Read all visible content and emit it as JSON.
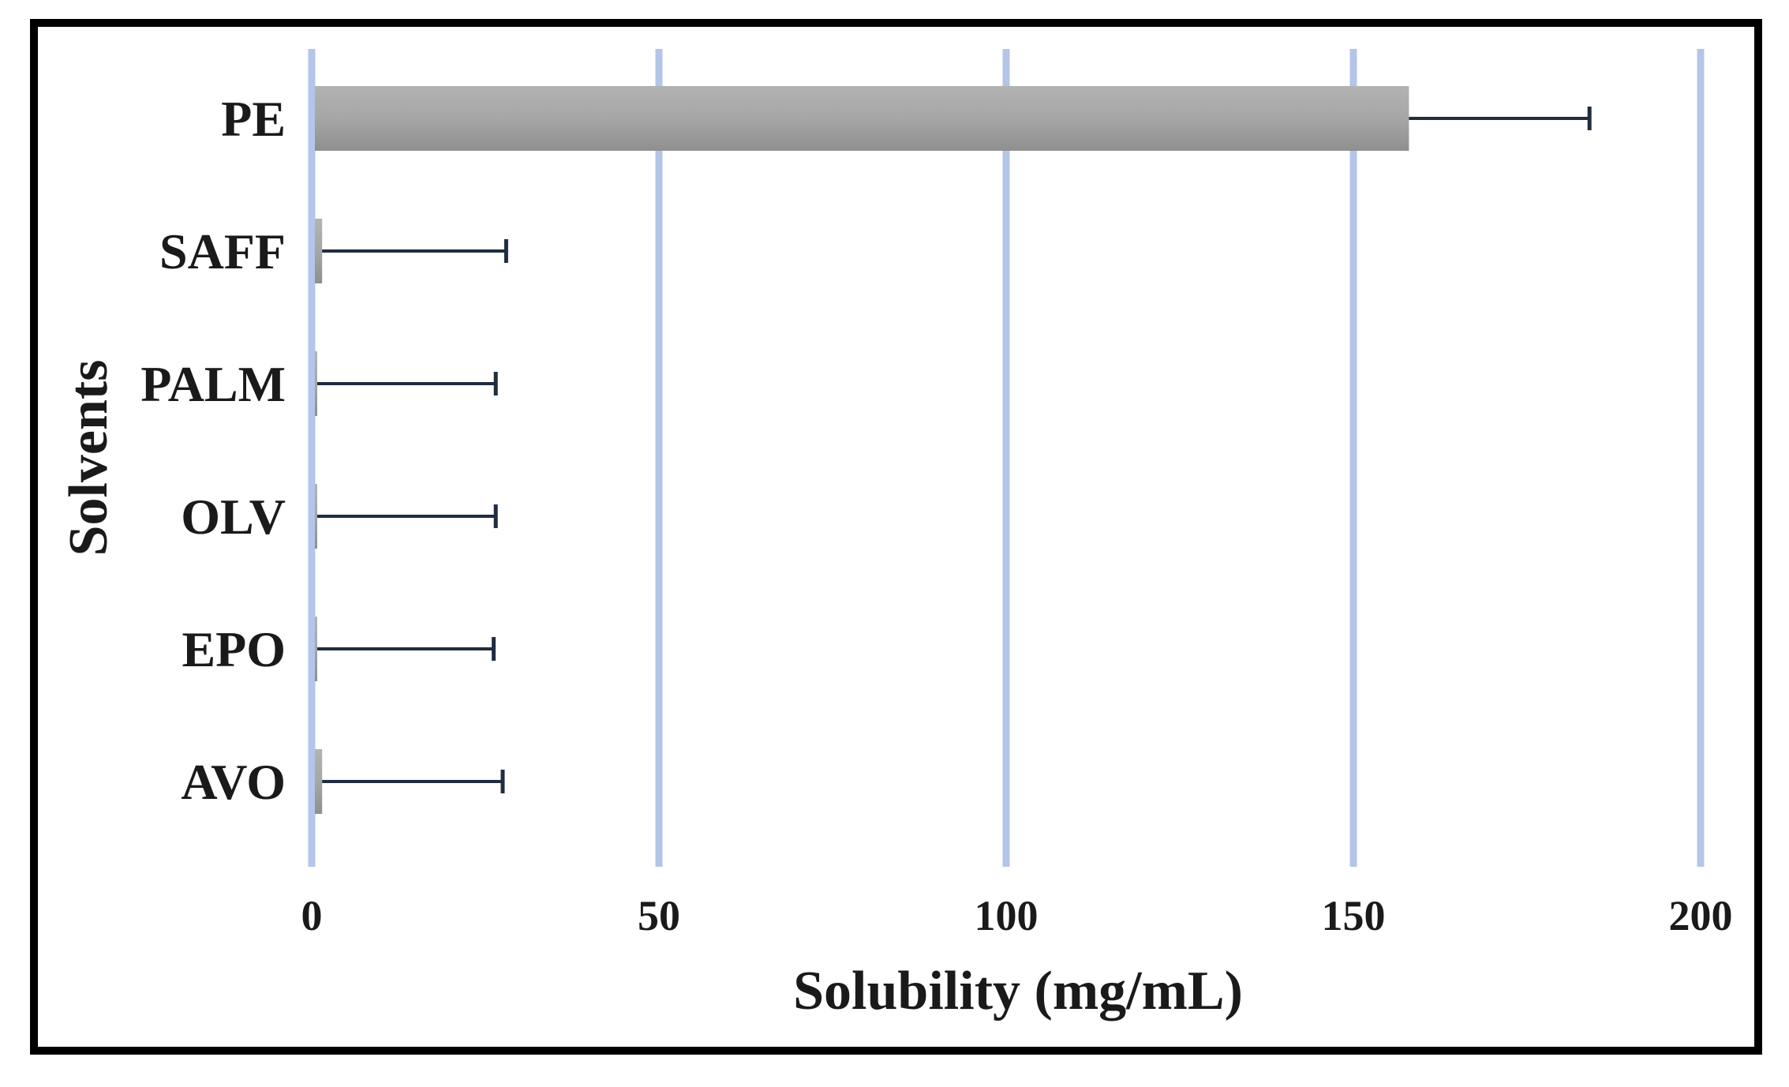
{
  "chart_data": {
    "type": "bar",
    "orientation": "horizontal",
    "categories": [
      "PE",
      "SAFF",
      "PALM",
      "OLV",
      "EPO",
      "AVO"
    ],
    "series": [
      {
        "values": [
          158,
          1.5,
          0.5,
          0.5,
          0.2,
          1.5
        ],
        "error": [
          26,
          26.5,
          26,
          26,
          26,
          26
        ]
      }
    ],
    "xlabel": "Solubility (mg/mL)",
    "ylabel": "Solvents",
    "xlim": [
      0,
      200
    ],
    "xticks": [
      0,
      50,
      100,
      150,
      200
    ],
    "xtick_labels": [
      "0",
      "50",
      "100",
      "150",
      "200"
    ],
    "grid": "vertical",
    "legend": "none",
    "colors": {
      "bar": "#a6a6a6",
      "gridline": "#b4c5ea",
      "errorbar": "#1f2d40",
      "frame": "#000000"
    }
  }
}
